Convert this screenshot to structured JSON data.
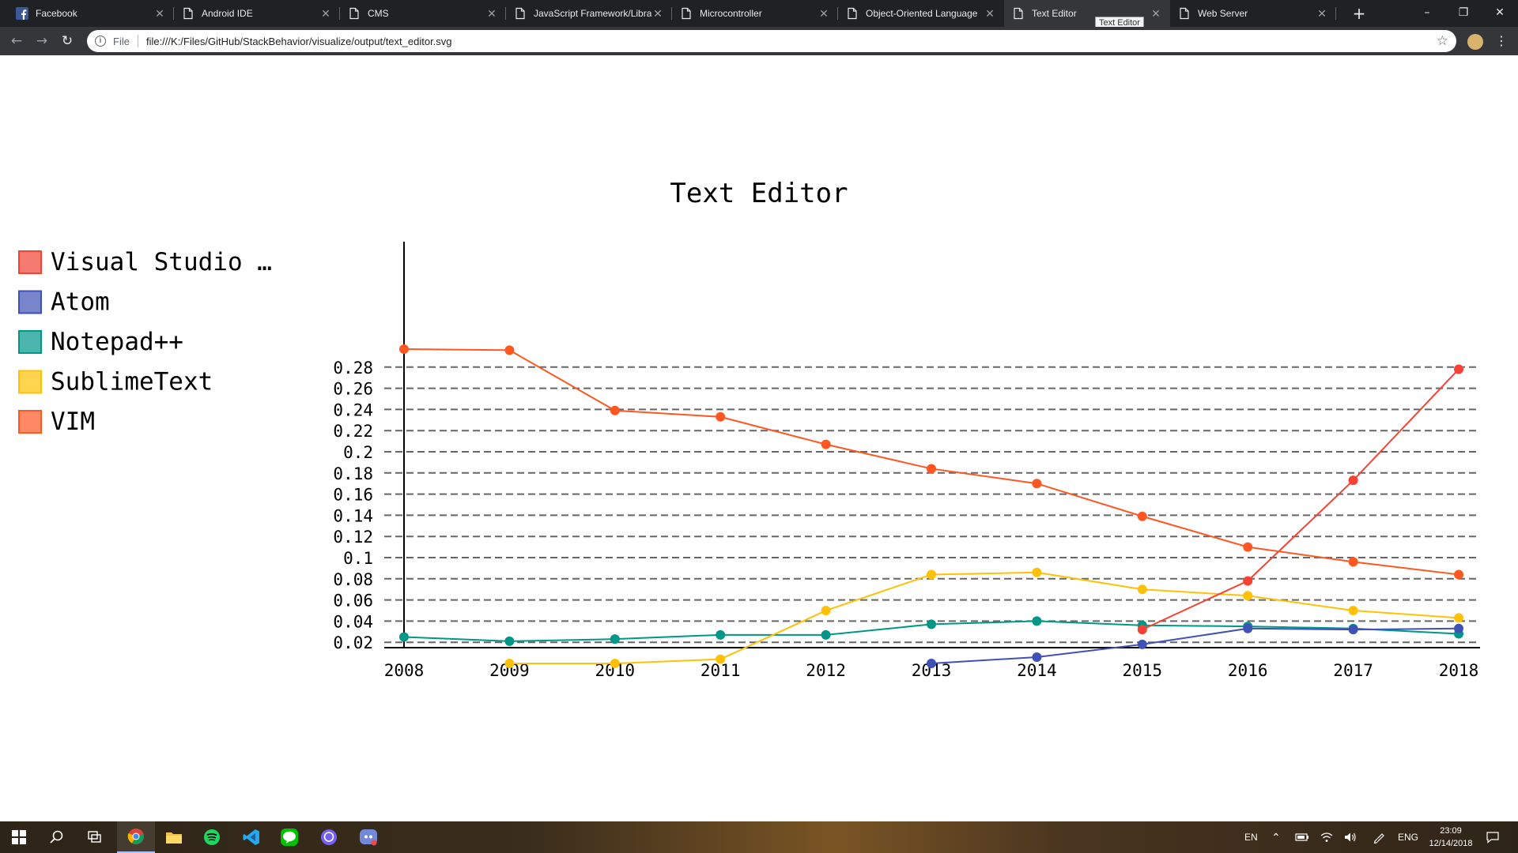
{
  "browser": {
    "tabs": [
      {
        "title": "Facebook",
        "favicon": "facebook-icon"
      },
      {
        "title": "Android IDE",
        "favicon": "page-icon"
      },
      {
        "title": "CMS",
        "favicon": "page-icon"
      },
      {
        "title": "JavaScript Framework/Library",
        "favicon": "page-icon"
      },
      {
        "title": "Microcontroller",
        "favicon": "page-icon"
      },
      {
        "title": "Object-Oriented Language",
        "favicon": "page-icon"
      },
      {
        "title": "Text Editor",
        "favicon": "page-icon",
        "active": true
      },
      {
        "title": "Web Server",
        "favicon": "page-icon"
      }
    ],
    "tooltip": "Text Editor",
    "address": {
      "scheme": "File",
      "url": "file:///K:/Files/GitHub/StackBehavior/visualize/output/text_editor.svg"
    }
  },
  "chart_data": {
    "type": "line",
    "title": "Text Editor",
    "x": [
      2008,
      2009,
      2010,
      2011,
      2012,
      2013,
      2014,
      2015,
      2016,
      2017,
      2018
    ],
    "yticks": [
      "0.02",
      "0.04",
      "0.06",
      "0.08",
      "0.1",
      "0.12",
      "0.14",
      "0.16",
      "0.18",
      "0.2",
      "0.22",
      "0.24",
      "0.26",
      "0.28"
    ],
    "ylim": [
      -0.005,
      0.3
    ],
    "grid": true,
    "legend_position": "left",
    "series": [
      {
        "name": "Visual Studio …",
        "color": "#f44336",
        "swatch": "#f57a70",
        "values": [
          null,
          null,
          null,
          null,
          null,
          null,
          null,
          0.032,
          0.078,
          0.173,
          0.278
        ]
      },
      {
        "name": "Atom",
        "color": "#3f51b5",
        "swatch": "#7885cb",
        "values": [
          null,
          null,
          null,
          null,
          null,
          0.0,
          0.006,
          0.018,
          0.033,
          0.032,
          0.033
        ]
      },
      {
        "name": "Notepad++",
        "color": "#009688",
        "swatch": "#4cb6ac",
        "values": [
          0.025,
          0.021,
          0.023,
          0.027,
          0.027,
          0.037,
          0.04,
          0.036,
          0.035,
          0.033,
          0.028
        ]
      },
      {
        "name": "SublimeText",
        "color": "#ffc107",
        "swatch": "#ffd54f",
        "values": [
          null,
          0.0,
          0.0,
          0.004,
          0.05,
          0.084,
          0.086,
          0.07,
          0.064,
          0.05,
          0.043
        ]
      },
      {
        "name": "VIM",
        "color": "#ff5722",
        "swatch": "#ff8a65",
        "values": [
          0.297,
          0.296,
          0.239,
          0.233,
          0.207,
          0.184,
          0.17,
          0.139,
          0.11,
          0.096,
          0.084
        ]
      }
    ]
  },
  "taskbar": {
    "icons": [
      "windows-start-icon",
      "search-icon",
      "task-view-icon",
      "chrome-icon",
      "file-explorer-icon",
      "spotify-icon",
      "vscode-icon",
      "line-icon",
      "viber-icon",
      "discord-icon"
    ],
    "tray_lang": "EN",
    "tray_input": "ENG",
    "time": "23:09",
    "date": "12/14/2018"
  }
}
